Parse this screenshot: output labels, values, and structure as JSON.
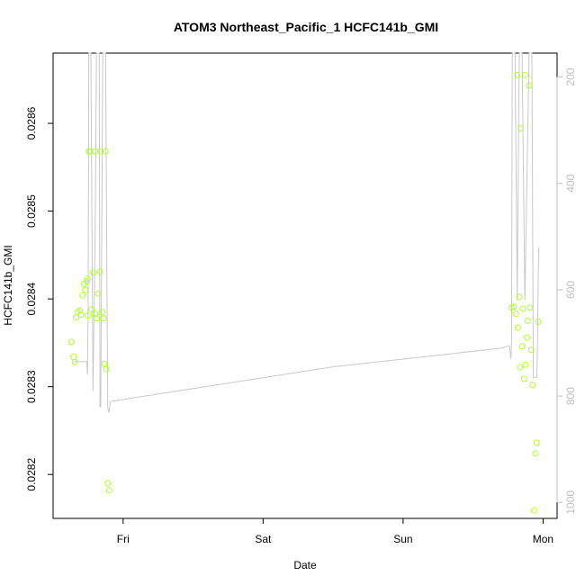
{
  "chart_data": {
    "type": "scatter",
    "title": "ATOM3 Northeast_Pacific_1 HCFC141b_GMI",
    "xlabel": "Date",
    "ylabel": "HCFC141b_GMI",
    "x_ticks": [
      "Fri",
      "Sat",
      "Sun",
      "Mon"
    ],
    "x_tick_days": [
      1,
      2,
      3,
      4
    ],
    "xlim_days": [
      0.5,
      4.1
    ],
    "ylim": [
      0.02815,
      0.02868
    ],
    "y_ticks": [
      0.0282,
      0.0283,
      0.0284,
      0.0285,
      0.0286
    ],
    "y2_ticks": [
      200,
      400,
      600,
      800,
      1000
    ],
    "y2lim": [
      1030,
      155
    ],
    "grid": false,
    "colors": {
      "points": "#adff2f",
      "line": "#c8c8c8",
      "right_axis": "#bebebe"
    },
    "series": [
      {
        "type": "scatter",
        "values": [
          {
            "x": 0.63,
            "y": 0.028351
          },
          {
            "x": 0.645,
            "y": 0.028334
          },
          {
            "x": 0.655,
            "y": 0.028328
          },
          {
            "x": 0.665,
            "y": 0.028379
          },
          {
            "x": 0.675,
            "y": 0.028385
          },
          {
            "x": 0.69,
            "y": 0.028387
          },
          {
            "x": 0.7,
            "y": 0.028382
          },
          {
            "x": 0.71,
            "y": 0.028404
          },
          {
            "x": 0.72,
            "y": 0.028417
          },
          {
            "x": 0.73,
            "y": 0.02841
          },
          {
            "x": 0.74,
            "y": 0.02842
          },
          {
            "x": 0.745,
            "y": 0.028423
          },
          {
            "x": 0.75,
            "y": 0.028381
          },
          {
            "x": 0.755,
            "y": 0.028568
          },
          {
            "x": 0.765,
            "y": 0.028568
          },
          {
            "x": 0.775,
            "y": 0.028388
          },
          {
            "x": 0.785,
            "y": 0.02843
          },
          {
            "x": 0.8,
            "y": 0.028383
          },
          {
            "x": 0.8,
            "y": 0.028568
          },
          {
            "x": 0.81,
            "y": 0.028378
          },
          {
            "x": 0.82,
            "y": 0.028406
          },
          {
            "x": 0.835,
            "y": 0.028431
          },
          {
            "x": 0.84,
            "y": 0.028568
          },
          {
            "x": 0.85,
            "y": 0.028385
          },
          {
            "x": 0.86,
            "y": 0.028378
          },
          {
            "x": 0.865,
            "y": 0.028326
          },
          {
            "x": 0.875,
            "y": 0.028568
          },
          {
            "x": 0.88,
            "y": 0.02832
          },
          {
            "x": 0.89,
            "y": 0.02819
          },
          {
            "x": 0.9,
            "y": 0.028182
          },
          {
            "x": 3.775,
            "y": 0.02839
          },
          {
            "x": 3.79,
            "y": 0.028391
          },
          {
            "x": 3.805,
            "y": 0.028383
          },
          {
            "x": 3.815,
            "y": 0.028655
          },
          {
            "x": 3.82,
            "y": 0.028367
          },
          {
            "x": 3.83,
            "y": 0.028402
          },
          {
            "x": 3.835,
            "y": 0.028322
          },
          {
            "x": 3.84,
            "y": 0.028594
          },
          {
            "x": 3.85,
            "y": 0.028346
          },
          {
            "x": 3.855,
            "y": 0.028389
          },
          {
            "x": 3.865,
            "y": 0.028309
          },
          {
            "x": 3.87,
            "y": 0.028655
          },
          {
            "x": 3.875,
            "y": 0.028325
          },
          {
            "x": 3.885,
            "y": 0.028356
          },
          {
            "x": 3.89,
            "y": 0.028375
          },
          {
            "x": 3.9,
            "y": 0.028643
          },
          {
            "x": 3.905,
            "y": 0.02839
          },
          {
            "x": 3.915,
            "y": 0.028342
          },
          {
            "x": 3.925,
            "y": 0.028302
          },
          {
            "x": 3.935,
            "y": 0.028159
          },
          {
            "x": 3.945,
            "y": 0.028224
          },
          {
            "x": 3.955,
            "y": 0.028236
          },
          {
            "x": 3.965,
            "y": 0.028374
          }
        ]
      },
      {
        "type": "line",
        "axis": "right",
        "values": [
          {
            "x": 0.65,
            "y": 735
          },
          {
            "x": 0.7,
            "y": 735
          },
          {
            "x": 0.74,
            "y": 735
          },
          {
            "x": 0.745,
            "y": 760
          },
          {
            "x": 0.75,
            "y": 650
          },
          {
            "x": 0.755,
            "y": 155
          },
          {
            "x": 0.77,
            "y": 155
          },
          {
            "x": 0.785,
            "y": 790
          },
          {
            "x": 0.8,
            "y": 500
          },
          {
            "x": 0.81,
            "y": 155
          },
          {
            "x": 0.83,
            "y": 155
          },
          {
            "x": 0.835,
            "y": 820
          },
          {
            "x": 0.84,
            "y": 820
          },
          {
            "x": 0.845,
            "y": 600
          },
          {
            "x": 0.855,
            "y": 155
          },
          {
            "x": 0.875,
            "y": 155
          },
          {
            "x": 0.89,
            "y": 820
          },
          {
            "x": 0.895,
            "y": 830
          },
          {
            "x": 0.9,
            "y": 830
          },
          {
            "x": 0.91,
            "y": 810
          },
          {
            "x": 1.5,
            "y": 786
          },
          {
            "x": 2.5,
            "y": 745
          },
          {
            "x": 3.7,
            "y": 710
          },
          {
            "x": 3.76,
            "y": 705
          },
          {
            "x": 3.77,
            "y": 730
          },
          {
            "x": 3.775,
            "y": 700
          },
          {
            "x": 3.78,
            "y": 155
          },
          {
            "x": 3.8,
            "y": 155
          },
          {
            "x": 3.815,
            "y": 620
          },
          {
            "x": 3.83,
            "y": 155
          },
          {
            "x": 3.85,
            "y": 155
          },
          {
            "x": 3.87,
            "y": 620
          },
          {
            "x": 3.9,
            "y": 155
          },
          {
            "x": 3.92,
            "y": 155
          },
          {
            "x": 3.93,
            "y": 765
          },
          {
            "x": 3.955,
            "y": 765
          },
          {
            "x": 3.96,
            "y": 710
          },
          {
            "x": 3.965,
            "y": 580
          },
          {
            "x": 3.97,
            "y": 520
          }
        ]
      }
    ]
  }
}
